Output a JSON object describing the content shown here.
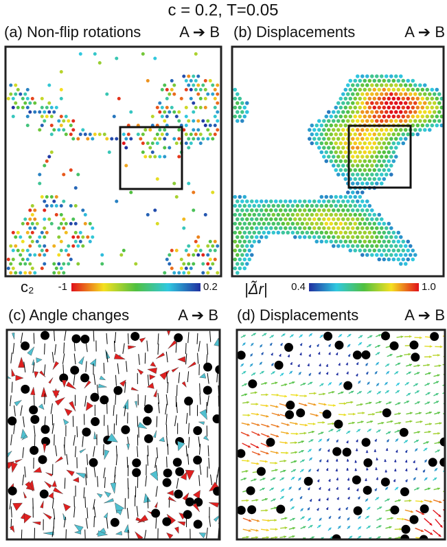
{
  "title": "c = 0.2, T=0.05",
  "panels": [
    {
      "label": "(a) Non-flip rotations",
      "arrow": "A ➔ B"
    },
    {
      "label": "(b) Displacements",
      "arrow": "A ➔ B"
    },
    {
      "label": "(c) Angle changes",
      "arrow": "A ➔ B"
    },
    {
      "label": "(d) Displacements",
      "arrow": "A ➔ B"
    }
  ],
  "colorbars": [
    {
      "label": "c₂",
      "min": -1,
      "max": 0.2
    },
    {
      "label": "|Δ̃r|",
      "min": 0.4,
      "max": {
        "value": 1,
        "label": "1.0"
      }
    }
  ]
}
